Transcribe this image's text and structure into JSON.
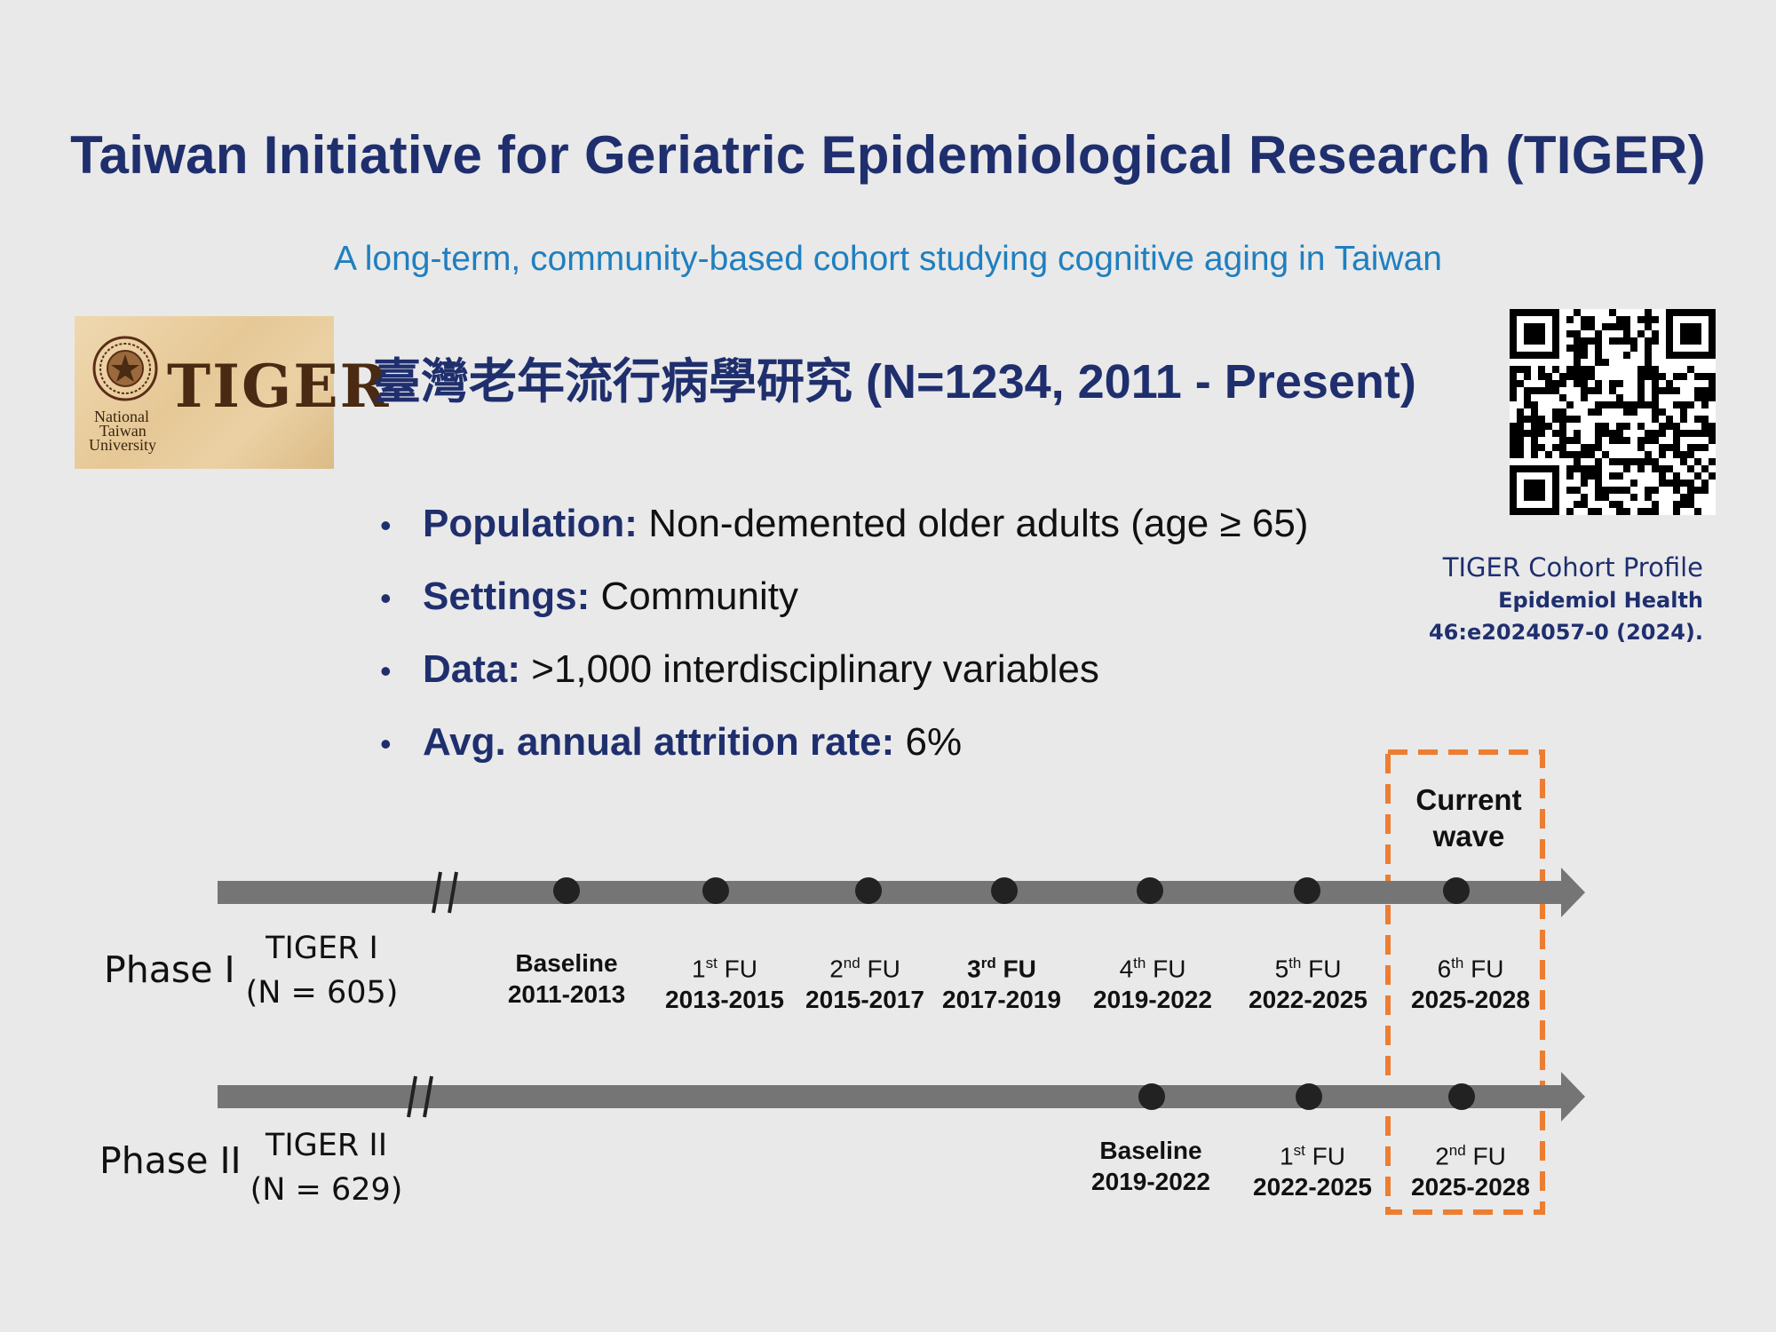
{
  "title": "Taiwan Initiative for Geriatric Epidemiological Research (TIGER)",
  "subtitle": "A long-term, community-based cohort studying cognitive aging in Taiwan",
  "logo": {
    "wordmark": "TIGER",
    "institution_lines": [
      "National",
      "Taiwan",
      "University"
    ]
  },
  "heading": "臺灣老年流行病學研究 (N=1234, 2011 - Present)",
  "qr_icon": "qr-code-icon",
  "citation": {
    "line1": "TIGER Cohort Profile",
    "line2": "Epidemiol Health",
    "line3": "46:e2024057-0 (2024)."
  },
  "bullets": [
    {
      "label": "Population:",
      "text": " Non-demented older adults (age ≥ 65)"
    },
    {
      "label": "Settings:",
      "text": " Community"
    },
    {
      "label": "Data:",
      "text": " >1,000 interdisciplinary variables"
    },
    {
      "label": "Avg. annual attrition rate:",
      "text": " 6%"
    }
  ],
  "current_wave_label": [
    "Current",
    "wave"
  ],
  "timeline": {
    "phase1": {
      "phase": "Phase I",
      "cohort": "TIGER I",
      "n": "(N = 605)",
      "waves": [
        {
          "ord": "",
          "sup": "",
          "name": "Baseline",
          "years": "2011-2013",
          "bold": true
        },
        {
          "ord": "1",
          "sup": "st",
          "name": " FU",
          "years": "2013-2015",
          "bold": false
        },
        {
          "ord": "2",
          "sup": "nd",
          "name": " FU",
          "years": "2015-2017",
          "bold": false
        },
        {
          "ord": "3",
          "sup": "rd",
          "name": " FU",
          "years": "2017-2019",
          "bold": true
        },
        {
          "ord": "4",
          "sup": "th",
          "name": " FU",
          "years": "2019-2022",
          "bold": false
        },
        {
          "ord": "5",
          "sup": "th",
          "name": " FU",
          "years": "2022-2025",
          "bold": false
        },
        {
          "ord": "6",
          "sup": "th",
          "name": " FU",
          "years": "2025-2028",
          "bold": false
        }
      ]
    },
    "phase2": {
      "phase": "Phase II",
      "cohort": "TIGER II",
      "n": "(N = 629)",
      "waves": [
        {
          "ord": "",
          "sup": "",
          "name": "Baseline",
          "years": "2019-2022",
          "bold": true
        },
        {
          "ord": "1",
          "sup": "st",
          "name": " FU",
          "years": "2022-2025",
          "bold": false
        },
        {
          "ord": "2",
          "sup": "nd",
          "name": " FU",
          "years": "2025-2028",
          "bold": false
        }
      ]
    }
  },
  "colors": {
    "title": "#1f2f6e",
    "subtitle": "#1f7fc0",
    "timeline_bar": "#757575",
    "dot": "#222222",
    "current_wave_box": "#ed7d31"
  }
}
